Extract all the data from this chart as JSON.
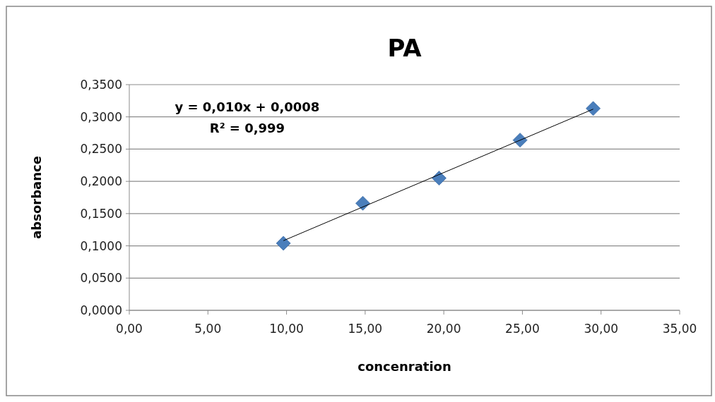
{
  "chart_data": {
    "type": "scatter",
    "title": "PA",
    "xlabel": "concenration",
    "ylabel": "absorbance",
    "xlim": [
      0,
      35
    ],
    "xticks": [
      {
        "value": 0,
        "label": "0,00"
      },
      {
        "value": 5,
        "label": "5,00"
      },
      {
        "value": 10,
        "label": "10,00"
      },
      {
        "value": 15,
        "label": "15,00"
      },
      {
        "value": 20,
        "label": "20,00"
      },
      {
        "value": 25,
        "label": "25,00"
      },
      {
        "value": 30,
        "label": "30,00"
      },
      {
        "value": 35,
        "label": "35,00"
      }
    ],
    "ylim": [
      0,
      0.35
    ],
    "yticks": [
      {
        "value": 0,
        "label": "0,0000"
      },
      {
        "value": 0.05,
        "label": "0,0500"
      },
      {
        "value": 0.1,
        "label": "0,1000"
      },
      {
        "value": 0.15,
        "label": "0,1500"
      },
      {
        "value": 0.2,
        "label": "0,2000"
      },
      {
        "value": 0.25,
        "label": "0,2500"
      },
      {
        "value": 0.3,
        "label": "0,3000"
      },
      {
        "value": 0.35,
        "label": "0,3500"
      }
    ],
    "grid": "y",
    "marker": "diamond",
    "series": [
      {
        "color": "#4a7ebb",
        "x": [
          9.8,
          14.85,
          19.7,
          24.85,
          29.5
        ],
        "values": [
          0.104,
          0.166,
          0.205,
          0.264,
          0.313
        ]
      },
      {
        "type": "line",
        "color": "#000000",
        "marker": "none",
        "x": [
          9.8,
          29.5
        ],
        "values": [
          0.108,
          0.312
        ]
      }
    ],
    "annotations": [
      "y = 0,010x + 0,0008",
      "R² = 0,999"
    ]
  }
}
